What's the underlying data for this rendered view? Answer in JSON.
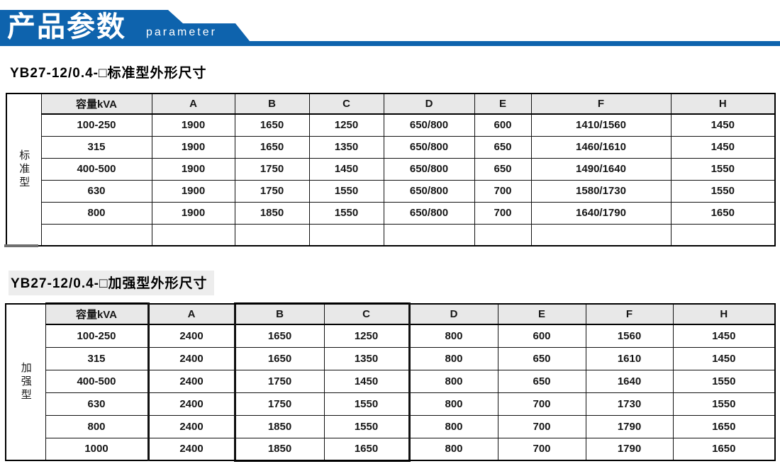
{
  "banner": {
    "title": "产品参数",
    "subtitle": "parameter"
  },
  "colors": {
    "banner_blue": "#0e63ad",
    "header_gray": "#e8e8e8",
    "title_highlight": "#ededed",
    "border_black": "#000000"
  },
  "section1": {
    "title": "YB27-12/0.4-□标准型外形尺寸",
    "side_label": "标准型",
    "table": {
      "headers": [
        "容量kVA",
        "A",
        "B",
        "C",
        "D",
        "E",
        "F",
        "H"
      ],
      "rows": [
        [
          "100-250",
          "1900",
          "1650",
          "1250",
          "650/800",
          "600",
          "1410/1560",
          "1450"
        ],
        [
          "315",
          "1900",
          "1650",
          "1350",
          "650/800",
          "650",
          "1460/1610",
          "1450"
        ],
        [
          "400-500",
          "1900",
          "1750",
          "1450",
          "650/800",
          "650",
          "1490/1640",
          "1550"
        ],
        [
          "630",
          "1900",
          "1750",
          "1550",
          "650/800",
          "700",
          "1580/1730",
          "1550"
        ],
        [
          "800",
          "1900",
          "1850",
          "1550",
          "650/800",
          "700",
          "1640/1790",
          "1650"
        ],
        [
          "",
          "",
          "",
          "",
          "",
          "",
          "",
          ""
        ]
      ]
    }
  },
  "section2": {
    "title": "YB27-12/0.4-□加强型外形尺寸",
    "side_label": "加强型",
    "table": {
      "headers": [
        "容量kVA",
        "A",
        "B",
        "C",
        "D",
        "E",
        "F",
        "H"
      ],
      "rows": [
        [
          "100-250",
          "2400",
          "1650",
          "1250",
          "800",
          "600",
          "1560",
          "1450"
        ],
        [
          "315",
          "2400",
          "1650",
          "1350",
          "800",
          "650",
          "1610",
          "1450"
        ],
        [
          "400-500",
          "2400",
          "1750",
          "1450",
          "800",
          "650",
          "1640",
          "1550"
        ],
        [
          "630",
          "2400",
          "1750",
          "1550",
          "800",
          "700",
          "1730",
          "1550"
        ],
        [
          "800",
          "2400",
          "1850",
          "1550",
          "800",
          "700",
          "1790",
          "1650"
        ],
        [
          "1000",
          "2400",
          "1850",
          "1650",
          "800",
          "700",
          "1790",
          "1650"
        ]
      ]
    }
  }
}
